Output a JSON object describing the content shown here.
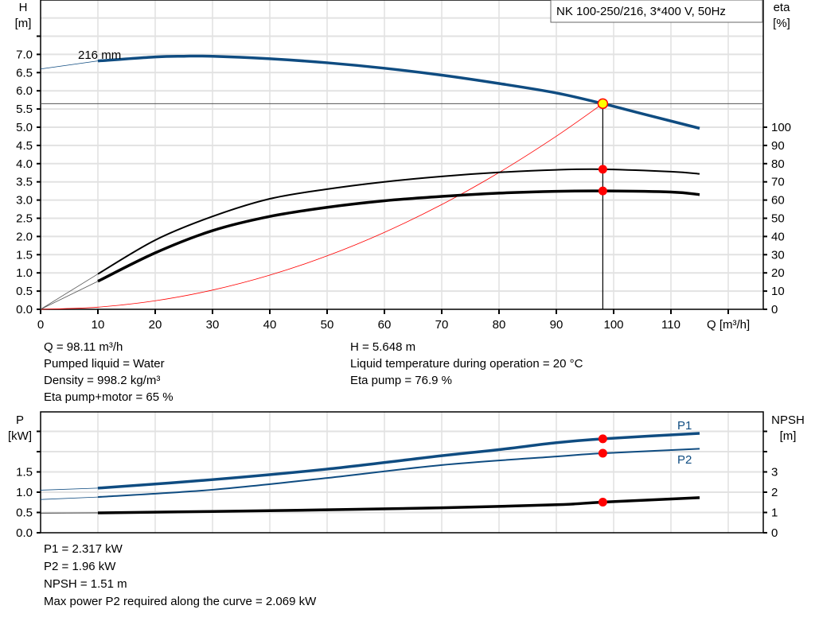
{
  "chart_data": [
    {
      "type": "line",
      "title": "NK 100-250/216, 3*400 V, 50Hz",
      "xlabel": "Q [m³/h]",
      "ylabel_left": [
        "H",
        "[m]"
      ],
      "ylabel_right": [
        "eta",
        "[%]"
      ],
      "xlim": [
        0,
        126
      ],
      "ylim_left": [
        0,
        8.5
      ],
      "ylim_right_eta": [
        0,
        100
      ],
      "x_ticks": [
        "0",
        "10",
        "20",
        "30",
        "40",
        "50",
        "60",
        "70",
        "80",
        "90",
        "100",
        "110"
      ],
      "y_ticks_left": [
        "0.0",
        "0.5",
        "1.0",
        "1.5",
        "2.0",
        "2.5",
        "3.0",
        "3.5",
        "4.0",
        "4.5",
        "5.0",
        "5.5",
        "6.0",
        "6.5",
        "7.0"
      ],
      "y_ticks_right": [
        "0",
        "10",
        "20",
        "30",
        "40",
        "50",
        "60",
        "70",
        "80",
        "90",
        "100"
      ],
      "grid": true,
      "annotation": "216 mm",
      "colors": {
        "head": "#0f4c81",
        "eta": "#000000",
        "system": "#ff0000",
        "duty_point": "#ffff00"
      },
      "duty_point": {
        "Q": 98.11,
        "H": 5.648,
        "eta_pump": 76.9,
        "eta_pump_motor": 65
      },
      "series": [
        {
          "id": "head",
          "unit": "m",
          "x": [
            0,
            10,
            20,
            25,
            30,
            40,
            50,
            60,
            70,
            80,
            90,
            98.11,
            105,
            115
          ],
          "y": [
            6.6,
            6.82,
            6.93,
            6.95,
            6.95,
            6.88,
            6.77,
            6.62,
            6.43,
            6.2,
            5.94,
            5.648,
            5.37,
            4.97
          ]
        },
        {
          "id": "eta_pump",
          "unit": "%",
          "x": [
            10,
            20,
            30,
            40,
            50,
            60,
            70,
            80,
            90,
            98.11,
            110,
            115
          ],
          "y": [
            19.4,
            38,
            51,
            60.7,
            66,
            70,
            73,
            75.2,
            76.6,
            76.9,
            75.6,
            74.4
          ]
        },
        {
          "id": "eta_pump_motor",
          "unit": "%",
          "x": [
            10,
            20,
            30,
            40,
            50,
            60,
            70,
            80,
            90,
            98.11,
            110,
            115
          ],
          "y": [
            15.4,
            31,
            43.2,
            51,
            56,
            59.6,
            62,
            63.8,
            64.8,
            65,
            64.4,
            63
          ]
        },
        {
          "id": "system_curve",
          "unit": "m",
          "x": [
            0,
            10,
            20,
            30,
            40,
            50,
            60,
            70,
            80,
            90,
            98.11
          ],
          "y": [
            0,
            0.059,
            0.235,
            0.528,
            0.939,
            1.467,
            2.113,
            2.876,
            3.756,
            4.753,
            5.648
          ]
        }
      ]
    },
    {
      "type": "line",
      "xlim": [
        0,
        126
      ],
      "ylabel_left": [
        "P",
        "[kW]"
      ],
      "ylabel_right": [
        "NPSH",
        "[m]"
      ],
      "ylim_left": [
        0,
        2.9
      ],
      "ylim_right": [
        0,
        5.8
      ],
      "y_ticks_left": [
        "0.0",
        "0.5",
        "1.0",
        "1.5"
      ],
      "y_ticks_right": [
        "0",
        "1",
        "2",
        "3"
      ],
      "grid": true,
      "colors": {
        "P1": "#0f4c81",
        "P2": "#0f4c81",
        "NPSH": "#000000",
        "marker": "#ff0000"
      },
      "duty_point": {
        "Q": 98.11,
        "P1": 2.317,
        "P2": 1.96,
        "NPSH": 1.51
      },
      "series": [
        {
          "name": "P1",
          "unit": "kW",
          "x": [
            0,
            10,
            30,
            50,
            70,
            80,
            90,
            98.11,
            115
          ],
          "y": [
            1.05,
            1.1,
            1.31,
            1.57,
            1.9,
            2.05,
            2.22,
            2.317,
            2.45
          ]
        },
        {
          "name": "P2",
          "unit": "kW",
          "x": [
            0,
            10,
            30,
            50,
            70,
            90,
            98.11,
            115
          ],
          "y": [
            0.82,
            0.88,
            1.06,
            1.35,
            1.67,
            1.88,
            1.96,
            2.07
          ]
        },
        {
          "id": "NPSH",
          "unit": "m",
          "x": [
            0,
            10,
            30,
            50,
            70,
            90,
            98.11,
            115
          ],
          "y": [
            0.97,
            0.98,
            1.05,
            1.13,
            1.23,
            1.38,
            1.51,
            1.73
          ]
        }
      ]
    }
  ],
  "info_top": {
    "q": "Q = 98.11 m³/h",
    "liquid": "Pumped liquid = Water",
    "density": "Density = 998.2 kg/m³",
    "eta_pm": "Eta pump+motor = 65 %",
    "h": "H = 5.648 m",
    "temp": "Liquid temperature during operation = 20 °C",
    "eta_p": "Eta pump = 76.9 %"
  },
  "info_bottom": {
    "p1": "P1 = 2.317 kW",
    "p2": "P2 = 1.96 kW",
    "npsh": "NPSH = 1.51 m",
    "maxp2": "Max power P2 required along the curve = 2.069 kW"
  }
}
